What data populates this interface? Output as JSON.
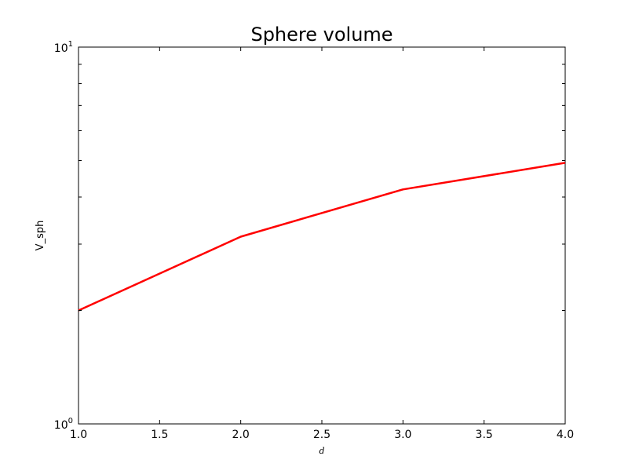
{
  "chart_data": {
    "type": "line",
    "title": "Sphere volume",
    "xlabel": "d",
    "ylabel": "V_sph",
    "xlim": [
      1.0,
      4.0
    ],
    "ylim": [
      1,
      10
    ],
    "yscale": "log",
    "grid": false,
    "x_ticks": [
      "1.0",
      "1.5",
      "2.0",
      "2.5",
      "3.0",
      "3.5",
      "4.0"
    ],
    "y_ticks": [
      {
        "value": 1,
        "base": "10",
        "exp": "0"
      },
      {
        "value": 10,
        "base": "10",
        "exp": "1"
      }
    ],
    "series": [
      {
        "color": "#ff0000",
        "x": [
          1,
          2,
          3,
          4
        ],
        "y": [
          2.0,
          3.14,
          4.19,
          4.93
        ]
      }
    ]
  }
}
